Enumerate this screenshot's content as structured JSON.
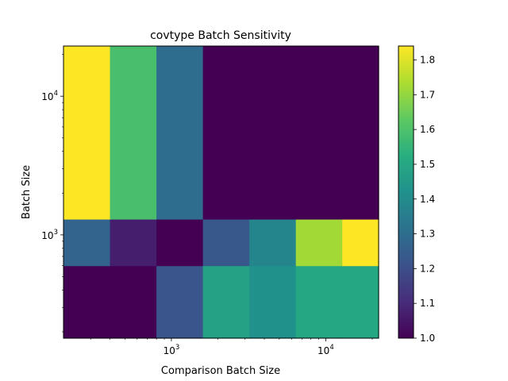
{
  "chart_data": {
    "type": "heatmap",
    "title": "covtype Batch Sensitivity",
    "xlabel": "Comparison Batch Size",
    "ylabel": "Batch Size",
    "x_scale": "log",
    "y_scale": "log",
    "xlim": [
      200,
      22000
    ],
    "ylim": [
      180,
      23000
    ],
    "x_ticks": [
      {
        "value": 1000,
        "base": "10",
        "exp": "3"
      },
      {
        "value": 10000,
        "base": "10",
        "exp": "4"
      }
    ],
    "y_ticks": [
      {
        "value": 1000,
        "base": "10",
        "exp": "3"
      },
      {
        "value": 10000,
        "base": "10",
        "exp": "4"
      }
    ],
    "x_edges": [
      200,
      400,
      800,
      1600,
      3200,
      6400,
      12800,
      22000
    ],
    "y_edges": [
      180,
      600,
      1300,
      23000
    ],
    "values": [
      [
        1.0,
        1.0,
        1.22,
        1.48,
        1.42,
        1.5,
        1.5
      ],
      [
        1.27,
        1.07,
        1.0,
        1.23,
        1.38,
        1.72,
        1.84
      ],
      [
        1.84,
        1.59,
        1.3,
        1.0,
        1.0,
        1.0,
        1.0
      ]
    ],
    "colorbar": {
      "min": 1.0,
      "max": 1.84,
      "ticks": [
        "1.0",
        "1.1",
        "1.2",
        "1.3",
        "1.4",
        "1.5",
        "1.6",
        "1.7",
        "1.8"
      ],
      "colormap": "viridis"
    }
  }
}
